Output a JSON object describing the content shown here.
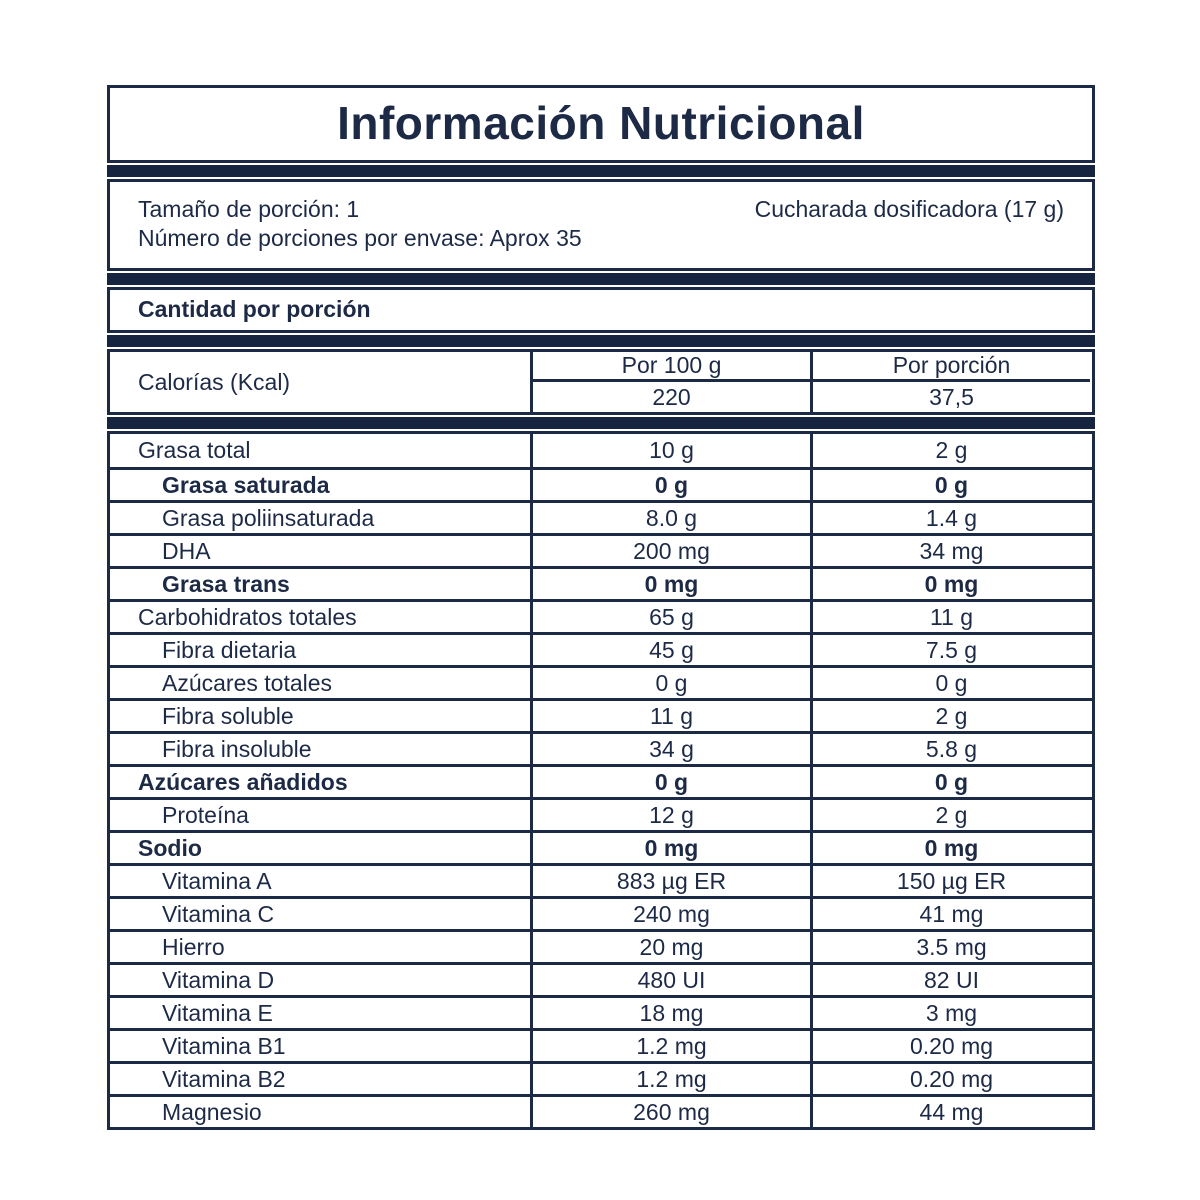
{
  "title": "Información Nutricional",
  "serving": {
    "size_label": "Tamaño de porción: 1",
    "size_detail": "Cucharada dosificadora (17 g)",
    "servings_per_container": "Número de porciones por envase: Aprox 35"
  },
  "section_header": "Cantidad por porción",
  "calories": {
    "label": "Calorías (Kcal)",
    "col_per_100g_header": "Por 100 g",
    "col_per_serving_header": "Por porción",
    "per_100g_value": "220",
    "per_serving_value": "37,5"
  },
  "rows": [
    {
      "label": "Grasa total",
      "per_100g": "10 g",
      "per_serving": "2 g",
      "bold": false,
      "indent": 1
    },
    {
      "label": "Grasa saturada",
      "per_100g": "0 g",
      "per_serving": "0 g",
      "bold": true,
      "indent": 2
    },
    {
      "label": "Grasa poliinsaturada",
      "per_100g": "8.0 g",
      "per_serving": "1.4 g",
      "bold": false,
      "indent": 2
    },
    {
      "label": "DHA",
      "per_100g": "200 mg",
      "per_serving": "34 mg",
      "bold": false,
      "indent": 2
    },
    {
      "label": "Grasa trans",
      "per_100g": "0 mg",
      "per_serving": "0 mg",
      "bold": true,
      "indent": 2
    },
    {
      "label": "Carbohidratos totales",
      "per_100g": "65 g",
      "per_serving": "11 g",
      "bold": false,
      "indent": 1
    },
    {
      "label": "Fibra dietaria",
      "per_100g": "45 g",
      "per_serving": "7.5 g",
      "bold": false,
      "indent": 2
    },
    {
      "label": "Azúcares totales",
      "per_100g": "0 g",
      "per_serving": "0 g",
      "bold": false,
      "indent": 2
    },
    {
      "label": "Fibra soluble",
      "per_100g": "11 g",
      "per_serving": "2 g",
      "bold": false,
      "indent": 2
    },
    {
      "label": "Fibra insoluble",
      "per_100g": "34 g",
      "per_serving": "5.8 g",
      "bold": false,
      "indent": 2
    },
    {
      "label": "Azúcares añadidos",
      "per_100g": "0 g",
      "per_serving": "0 g",
      "bold": true,
      "indent": 1
    },
    {
      "label": "Proteína",
      "per_100g": "12 g",
      "per_serving": "2 g",
      "bold": false,
      "indent": 2
    },
    {
      "label": "Sodio",
      "per_100g": "0 mg",
      "per_serving": "0 mg",
      "bold": true,
      "indent": 1
    },
    {
      "label": "Vitamina A",
      "per_100g": "883 µg ER",
      "per_serving": "150 µg ER",
      "bold": false,
      "indent": 2
    },
    {
      "label": "Vitamina C",
      "per_100g": "240 mg",
      "per_serving": "41 mg",
      "bold": false,
      "indent": 2
    },
    {
      "label": "Hierro",
      "per_100g": "20 mg",
      "per_serving": "3.5 mg",
      "bold": false,
      "indent": 2
    },
    {
      "label": "Vitamina D",
      "per_100g": "480 UI",
      "per_serving": "82 UI",
      "bold": false,
      "indent": 2
    },
    {
      "label": "Vitamina E",
      "per_100g": "18 mg",
      "per_serving": "3 mg",
      "bold": false,
      "indent": 2
    },
    {
      "label": "Vitamina B1",
      "per_100g": "1.2 mg",
      "per_serving": "0.20 mg",
      "bold": false,
      "indent": 2
    },
    {
      "label": "Vitamina B2",
      "per_100g": "1.2 mg",
      "per_serving": "0.20 mg",
      "bold": false,
      "indent": 2
    },
    {
      "label": "Magnesio",
      "per_100g": "260 mg",
      "per_serving": "44 mg",
      "bold": false,
      "indent": 2
    }
  ],
  "colors": {
    "navy": "#1d2a46",
    "bar": "#172440",
    "bg": "#ffffff"
  }
}
